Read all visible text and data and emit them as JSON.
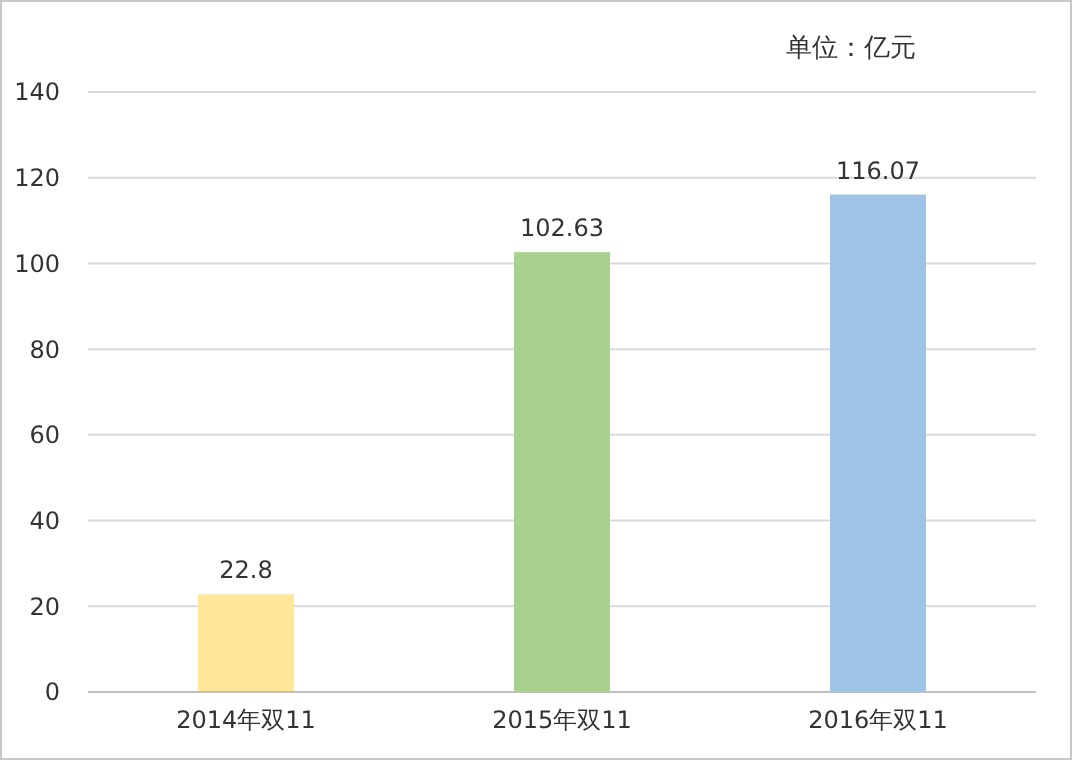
{
  "chart_data": {
    "type": "bar",
    "categories": [
      "2014年双11",
      "2015年双11",
      "2016年双11"
    ],
    "values": [
      22.8,
      102.63,
      116.07
    ],
    "colors": [
      "#ffe699",
      "#a9d18e",
      "#9dc3e6"
    ],
    "ylim": [
      0,
      140
    ],
    "yticks": [
      0,
      20,
      40,
      60,
      80,
      100,
      120,
      140
    ],
    "grid": "y",
    "data_labels": true,
    "annotations": [
      "单位：亿元"
    ]
  }
}
